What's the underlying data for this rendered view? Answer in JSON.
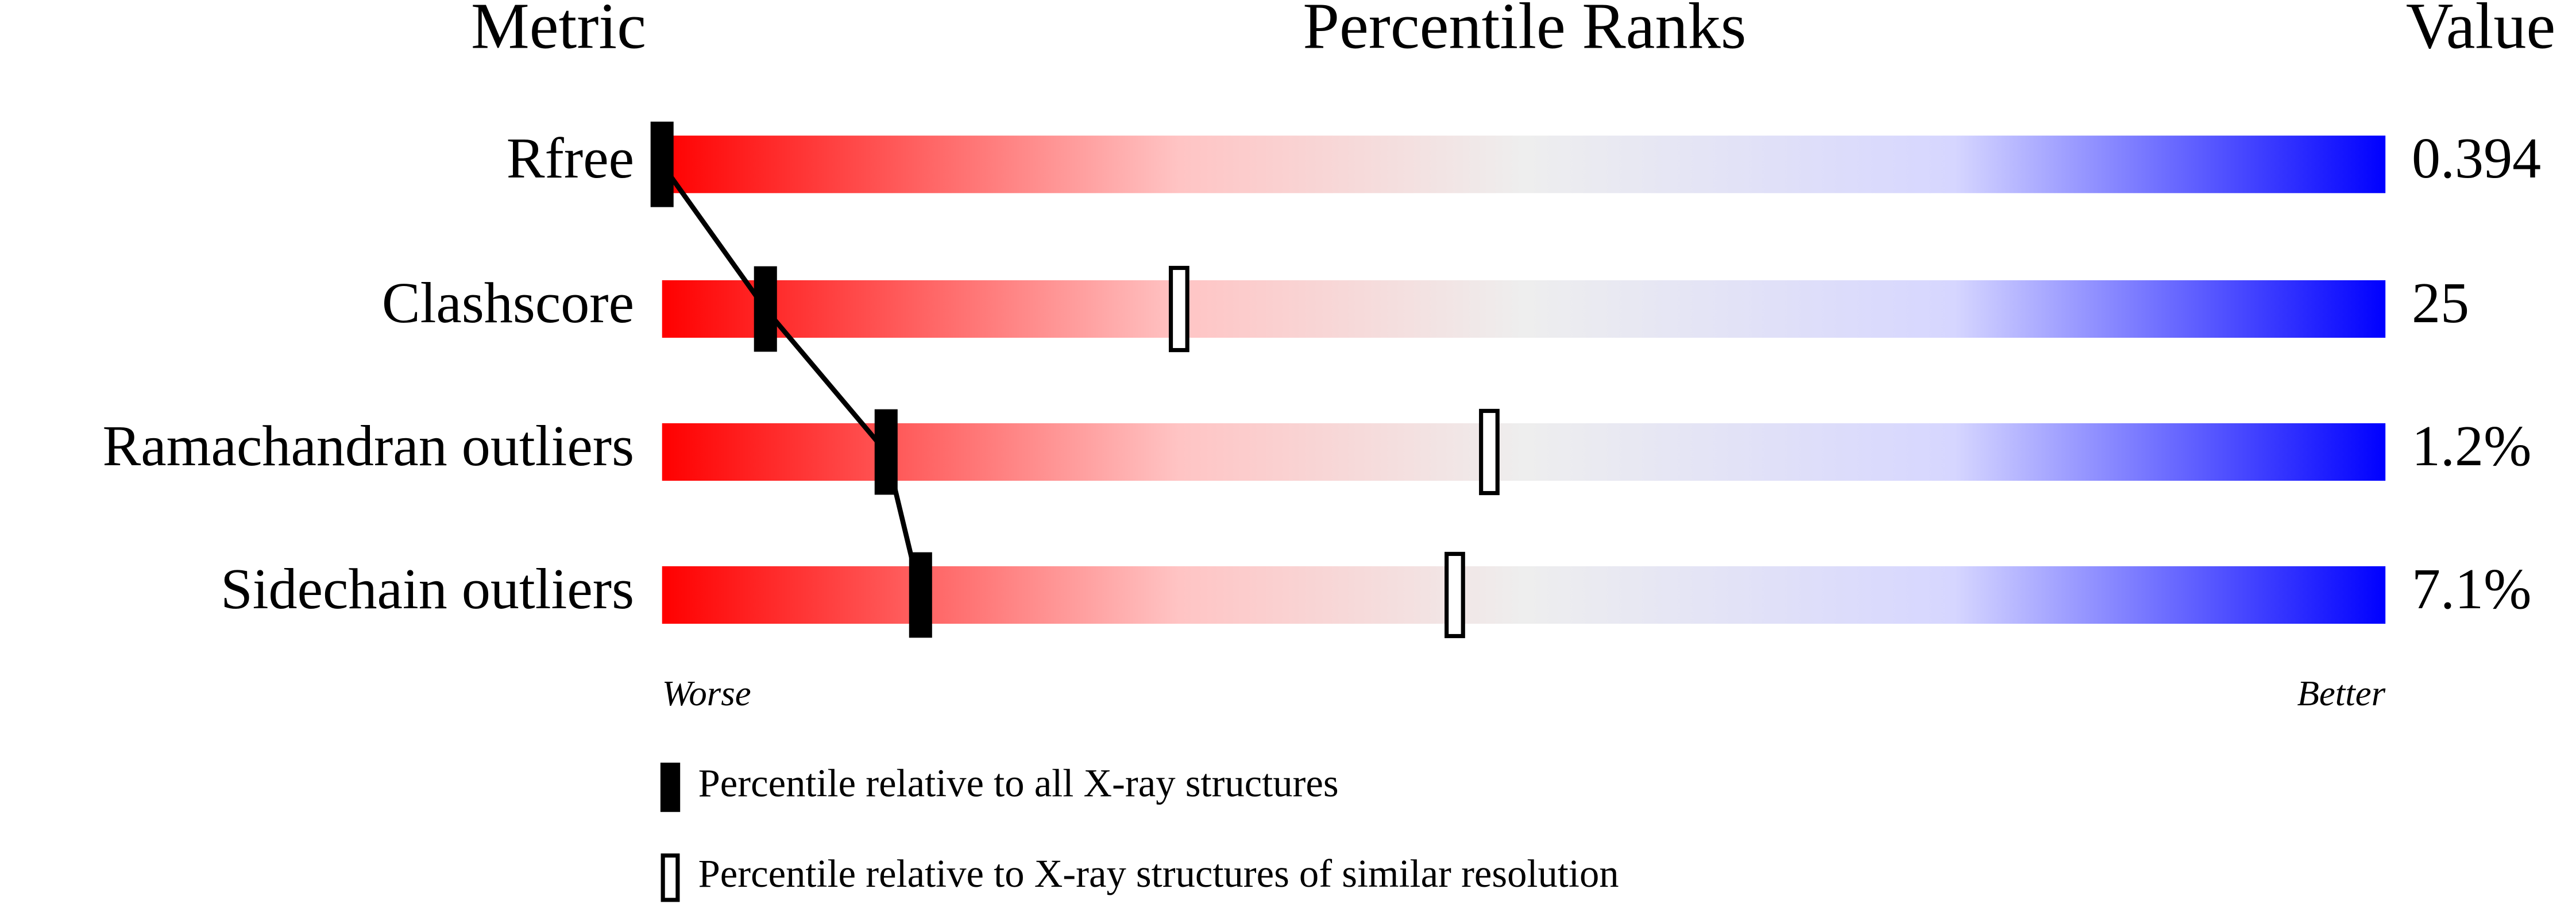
{
  "chart_data": {
    "type": "slider",
    "headers": [
      "Metric",
      "Percentile Ranks",
      "Value"
    ],
    "categories": [
      "Rfree",
      "Clashscore",
      "Ramachandran outliers",
      "Sidechain outliers"
    ],
    "values": [
      "0.394",
      "25",
      "1.2%",
      "7.1%"
    ],
    "series": [
      {
        "name": "Percentile relative to all X-ray structures",
        "color": "#000000",
        "values": [
          0,
          6,
          13,
          15
        ]
      },
      {
        "name": "Percentile relative to X-ray structures of similar resolution",
        "color": "#ffffff",
        "values": [
          null,
          30,
          48,
          46
        ]
      }
    ],
    "xlim": [
      0,
      100
    ],
    "axis_labels": [
      "Worse",
      "Better"
    ]
  }
}
